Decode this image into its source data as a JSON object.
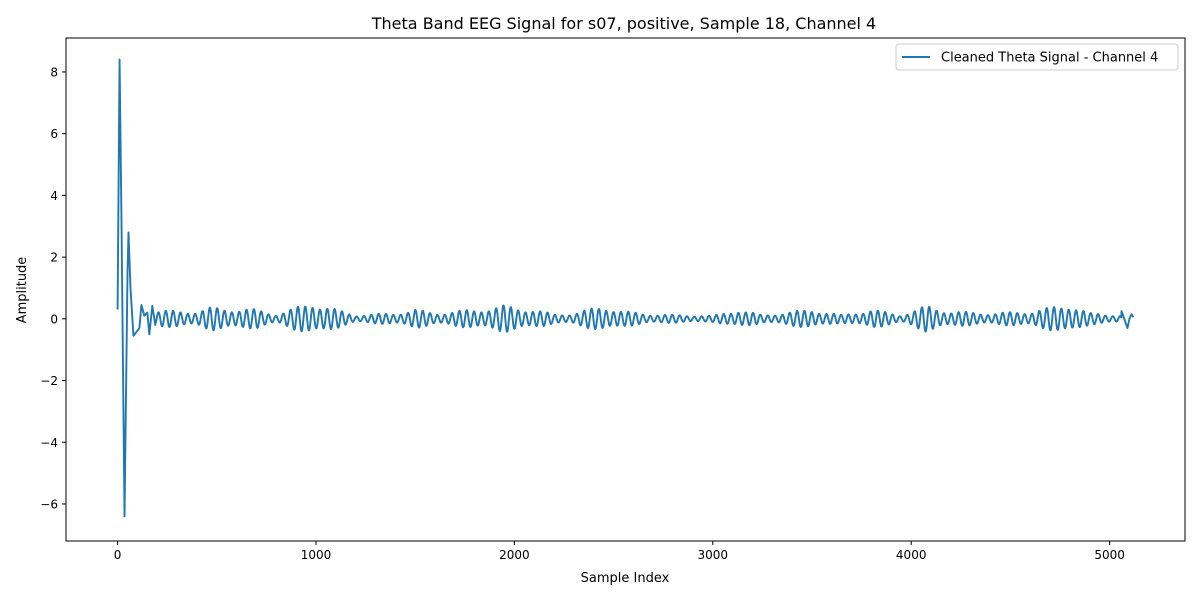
{
  "chart_data": {
    "type": "line",
    "title": "Theta Band EEG Signal for s07, positive, Sample 18, Channel 4",
    "xlabel": "Sample Index",
    "ylabel": "Amplitude",
    "xlim": [
      -260,
      5380
    ],
    "ylim": [
      -7.2,
      9.1
    ],
    "x_ticks": [
      0,
      1000,
      2000,
      3000,
      4000,
      5000
    ],
    "x_tick_labels": [
      "0",
      "1000",
      "2000",
      "3000",
      "4000",
      "5000"
    ],
    "y_ticks": [
      -6,
      -4,
      -2,
      0,
      2,
      4,
      6,
      8
    ],
    "y_tick_labels": [
      "−6",
      "−4",
      "−2",
      "0",
      "2",
      "4",
      "6",
      "8"
    ],
    "grid": false,
    "legend_position": "top-right",
    "series": [
      {
        "name": "Cleaned Theta Signal - Channel 4",
        "color": "#1f77b4",
        "sample_count": 5120,
        "keypoints": [
          [
            0,
            0.3
          ],
          [
            10,
            8.4
          ],
          [
            20,
            3.0
          ],
          [
            35,
            -6.4
          ],
          [
            50,
            1.5
          ],
          [
            55,
            2.8
          ],
          [
            65,
            1.0
          ],
          [
            80,
            -0.55
          ],
          [
            110,
            -0.3
          ],
          [
            120,
            0.45
          ],
          [
            135,
            0.1
          ],
          [
            150,
            0.2
          ],
          [
            160,
            -0.5
          ],
          [
            175,
            0.42
          ],
          [
            190,
            -0.2
          ]
        ],
        "envelope": [
          [
            200,
            0.22
          ],
          [
            400,
            0.2
          ],
          [
            470,
            0.3
          ],
          [
            700,
            0.25
          ],
          [
            800,
            0.12
          ],
          [
            900,
            0.3
          ],
          [
            980,
            0.45
          ],
          [
            1100,
            0.25
          ],
          [
            1200,
            0.1
          ],
          [
            1400,
            0.15
          ],
          [
            1500,
            0.25
          ],
          [
            1600,
            0.15
          ],
          [
            1800,
            0.25
          ],
          [
            1950,
            0.35
          ],
          [
            2100,
            0.25
          ],
          [
            2200,
            0.12
          ],
          [
            2300,
            0.15
          ],
          [
            2450,
            0.35
          ],
          [
            2550,
            0.2
          ],
          [
            2700,
            0.12
          ],
          [
            3000,
            0.08
          ],
          [
            3130,
            0.25
          ],
          [
            3250,
            0.1
          ],
          [
            3500,
            0.25
          ],
          [
            3650,
            0.1
          ],
          [
            3800,
            0.25
          ],
          [
            3950,
            0.1
          ],
          [
            4080,
            0.35
          ],
          [
            4200,
            0.2
          ],
          [
            4400,
            0.15
          ],
          [
            4600,
            0.2
          ],
          [
            4800,
            0.4
          ],
          [
            4900,
            0.15
          ],
          [
            5050,
            0.1
          ],
          [
            5120,
            0.0
          ]
        ],
        "period": 37,
        "end_points": [
          [
            5060,
            0.25
          ],
          [
            5090,
            -0.3
          ],
          [
            5100,
            0.0
          ],
          [
            5110,
            0.15
          ],
          [
            5120,
            0.05
          ]
        ]
      }
    ]
  }
}
